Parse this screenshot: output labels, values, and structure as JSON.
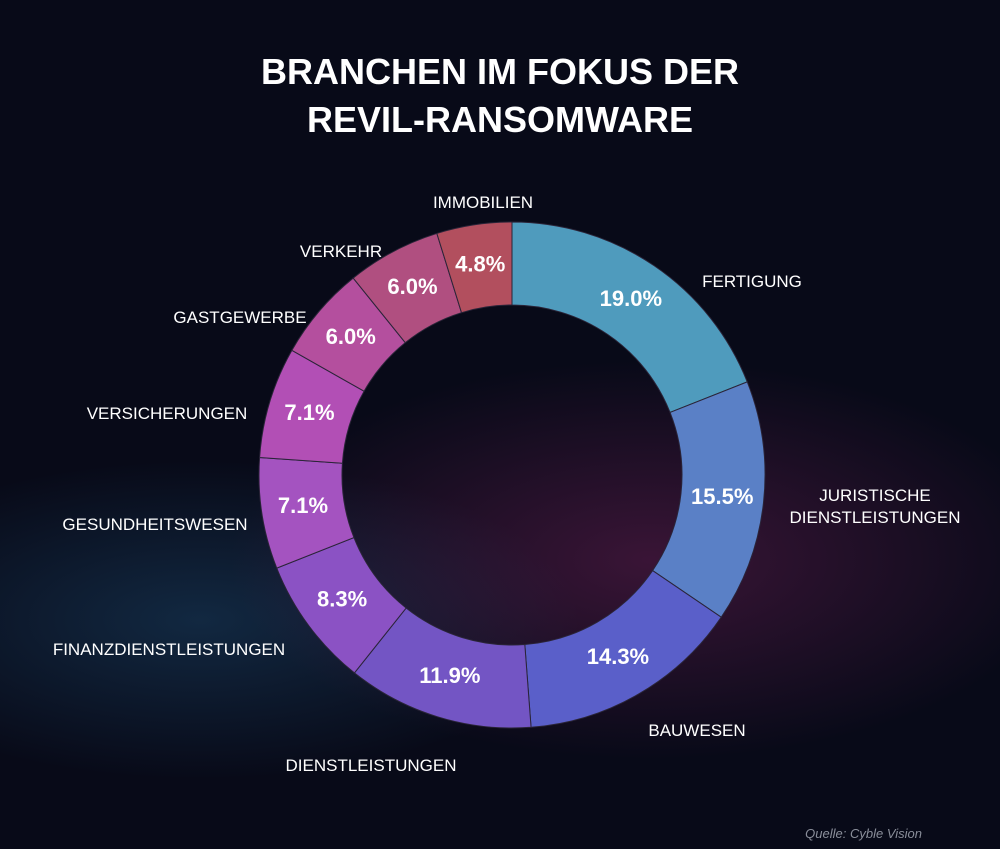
{
  "chart_data": {
    "type": "donut",
    "title": "BRANCHEN IM FOKUS DER REVIL-RANSOMWARE",
    "source": "Quelle: Cyble Vision",
    "categories": [
      "FERTIGUNG",
      "JURISTISCHE DIENSTLEISTUNGEN",
      "BAUWESEN",
      "DIENSTLEISTUNGEN",
      "FINANZDIENSTLEISTUNGEN",
      "GESUNDHEITSWESEN",
      "VERSICHERUNGEN",
      "GASTGEWERBE",
      "VERKEHR",
      "IMMOBILIEN"
    ],
    "values": [
      19.0,
      15.5,
      14.3,
      11.9,
      8.3,
      7.1,
      7.1,
      6.0,
      6.0,
      4.8
    ],
    "value_labels": [
      "19.0%",
      "15.5%",
      "14.3%",
      "11.9%",
      "8.3%",
      "7.1%",
      "7.1%",
      "6.0%",
      "6.0%",
      "4.8%"
    ],
    "colors": [
      "#4f9bbd",
      "#5a80c6",
      "#5a5fc9",
      "#7355c4",
      "#8b52c4",
      "#a453c0",
      "#b24fb5",
      "#b44f9e",
      "#b04f80",
      "#b24f5e"
    ]
  }
}
